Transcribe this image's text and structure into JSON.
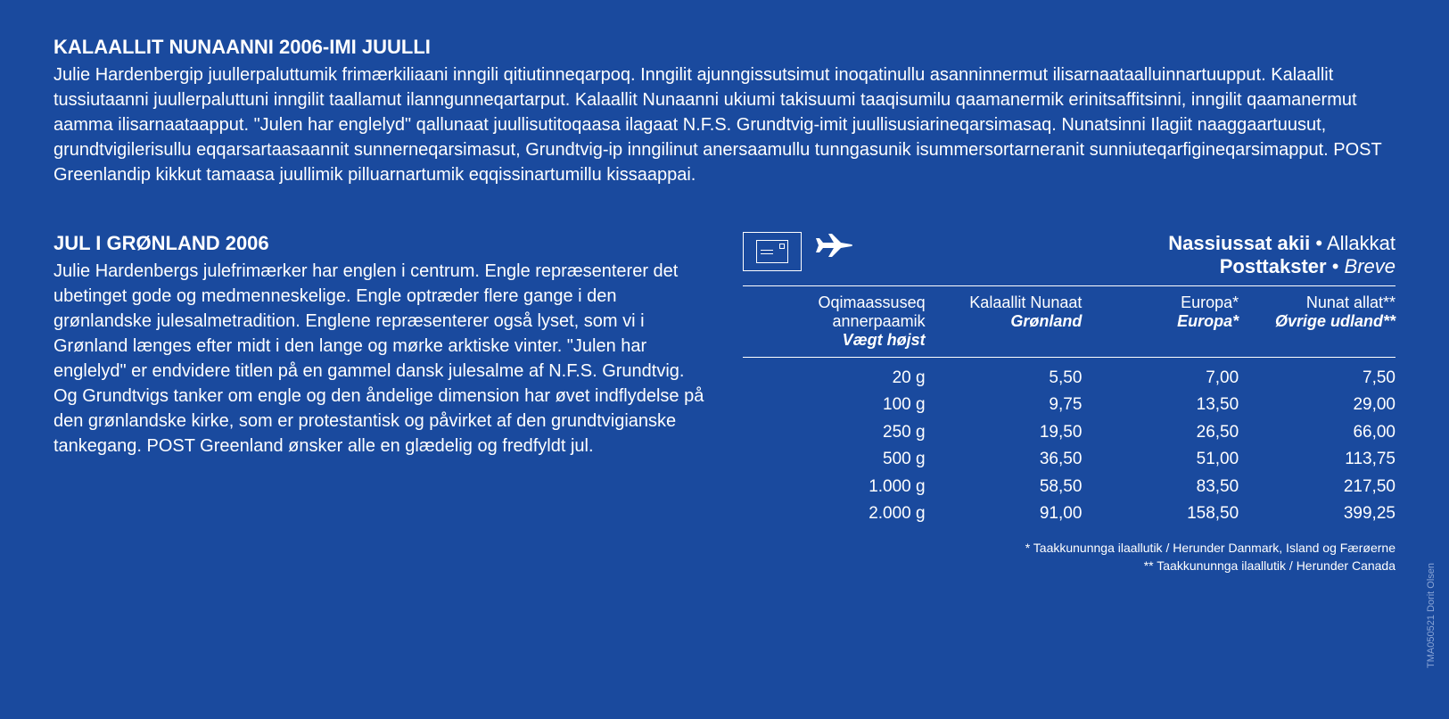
{
  "colors": {
    "background": "#1a4a9e",
    "text": "#ffffff",
    "credit": "#8aa5d6"
  },
  "section1": {
    "title": "KALAALLIT NUNAANNI 2006-IMI JUULLI",
    "body": "Julie Hardenbergip juullerpaluttumik frimærkiliaani inngili qitiutinneqarpoq. Inngilit ajunngissutsimut inoqatinullu asanninnermut ilisarnaataalluinnartuupput. Kalaallit tussiutaanni juullerpaluttuni inngilit taallamut ilanngunneqartarput. Kalaallit Nunaanni ukiumi takisuumi taaqisumilu qaamanermik erinitsaffitsinni, inngilit qaamanermut aamma ilisarnaataapput. \"Julen har englelyd\" qallunaat juullisutitoqaasa ilagaat N.F.S. Grundtvig-imit juullisusiarineqarsimasaq. Nunatsinni Ilagiit naaggaartuusut, grundtvigilerisullu eqqarsartaasaannit sunnerneqarsimasut, Grundtvig-ip inngilinut anersaamullu tunngasunik isummersortarneranit sunniuteqarfigineqarsimapput. POST Greenlandip kikkut tamaasa juullimik pilluarnartumik eqqissinartumillu kissaappai."
  },
  "section2": {
    "title": "JUL I GRØNLAND 2006",
    "body": "Julie Hardenbergs julefrimærker har englen i centrum. Engle repræsenterer det ubetinget gode og medmenneskelige. Engle optræder flere gange i den grønlandske julesalmetradition. Englene repræsenterer også lyset, som vi i Grønland længes efter midt i den lange og mørke arktiske vinter. \"Julen har englelyd\" er endvidere titlen på en gammel dansk julesalme af N.F.S. Grundtvig. Og Grundtvigs tanker om engle og den åndelige dimension har øvet indflydelse på den grønlandske kirke, som er protestantisk og påvirket af den grundtvigianske tankegang. POST Greenland ønsker alle en glædelig og fredfyldt jul."
  },
  "rateTable": {
    "headerTitle1": {
      "bold": "Nassiussat akii",
      "sep": " • ",
      "light": "Allakkat"
    },
    "headerTitle2": {
      "bold": "Posttakster",
      "sep": " • ",
      "light": "Breve"
    },
    "columns": [
      {
        "top": "Oqimaassuseq annerpaamik",
        "bottom": "Vægt højst"
      },
      {
        "top": "Kalaallit Nunaat",
        "bottom": "Grønland"
      },
      {
        "top": "Europa*",
        "bottom": "Europa*"
      },
      {
        "top": "Nunat allat**",
        "bottom": "Øvrige udland**"
      }
    ],
    "rows": [
      {
        "weight": "20 g",
        "greenland": "5,50",
        "europe": "7,00",
        "other": "7,50"
      },
      {
        "weight": "100 g",
        "greenland": "9,75",
        "europe": "13,50",
        "other": "29,00"
      },
      {
        "weight": "250 g",
        "greenland": "19,50",
        "europe": "26,50",
        "other": "66,00"
      },
      {
        "weight": "500 g",
        "greenland": "36,50",
        "europe": "51,00",
        "other": "113,75"
      },
      {
        "weight": "1.000 g",
        "greenland": "58,50",
        "europe": "83,50",
        "other": "217,50"
      },
      {
        "weight": "2.000 g",
        "greenland": "91,00",
        "europe": "158,50",
        "other": "399,25"
      }
    ],
    "footnote1": "*   Taakkununnga ilaallutik / Herunder Danmark, Island og Færøerne",
    "footnote2": "** Taakkununnga ilaallutik / Herunder Canada"
  },
  "designerCredit": "TMA050521 Dorit Olsen"
}
